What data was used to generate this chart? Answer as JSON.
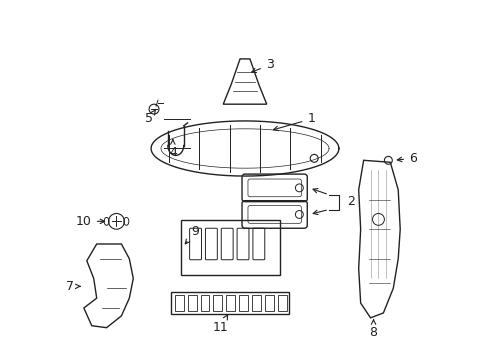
{
  "bg_color": "#ffffff",
  "fig_width": 4.89,
  "fig_height": 3.6,
  "dpi": 100,
  "line_color": "#222222",
  "text_color": "#222222",
  "label_fontsize": 9
}
